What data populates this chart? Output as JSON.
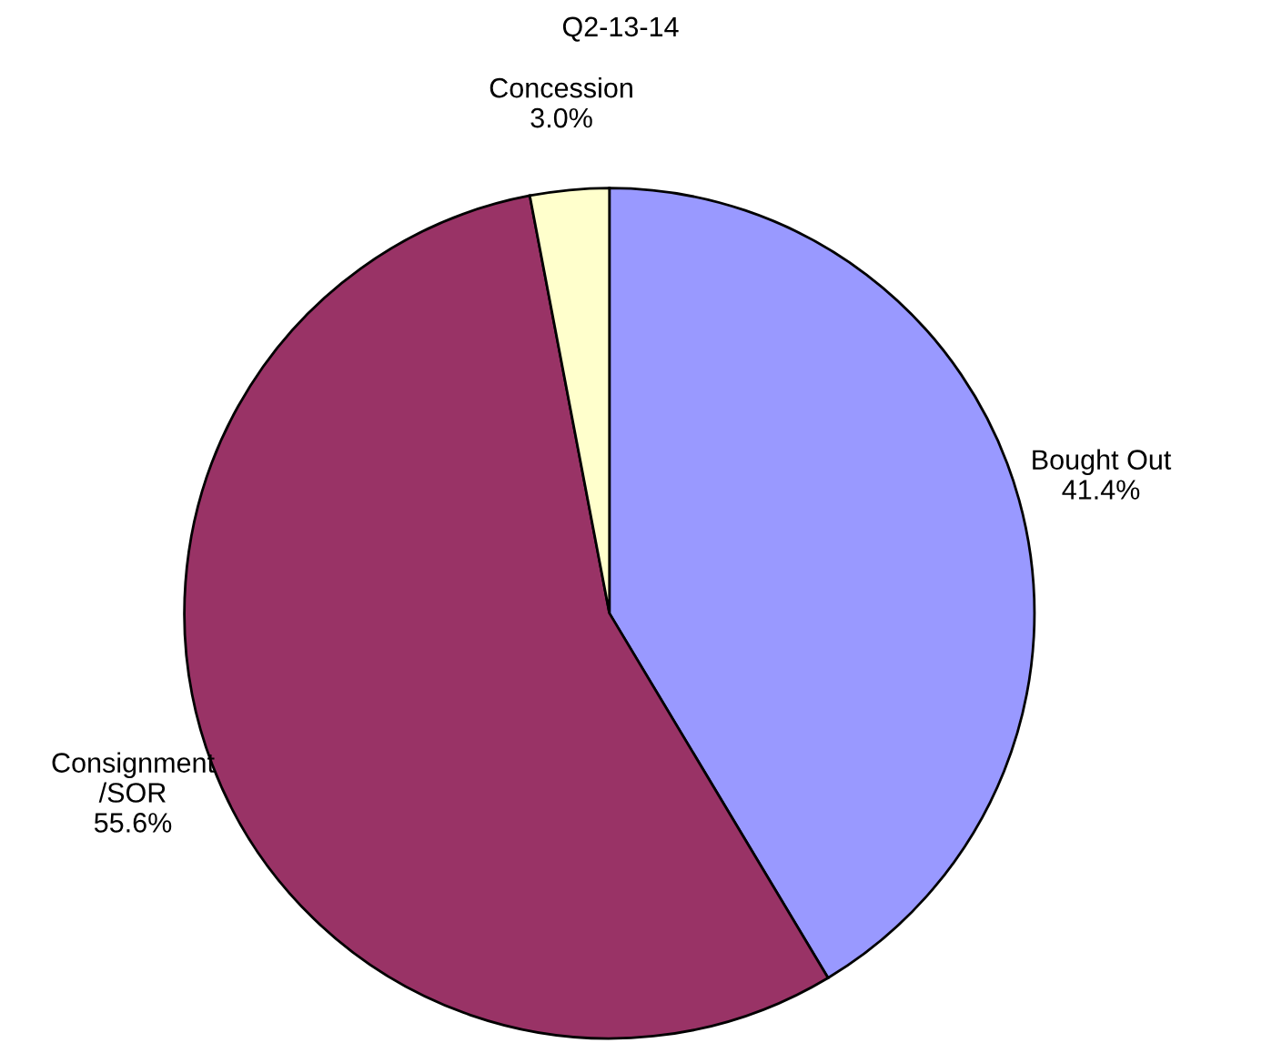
{
  "chart_data": {
    "type": "pie",
    "title": "Q2-13-14",
    "categories": [
      "Bought Out",
      "Consignment\n/SOR",
      "Concession"
    ],
    "values": [
      41.4,
      55.6,
      3.0
    ],
    "value_labels": [
      "41.4%",
      "55.6%",
      "3.0%"
    ],
    "colors": [
      "#9999ff",
      "#993366",
      "#ffffcc"
    ],
    "legend": false
  }
}
